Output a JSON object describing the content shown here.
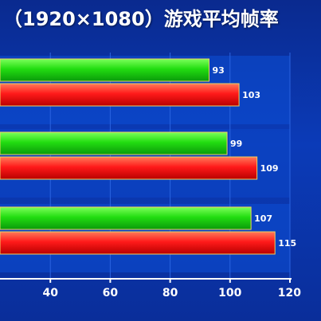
{
  "chart_data": {
    "type": "bar",
    "orientation": "horizontal",
    "title": "（1920×1080）游戏平均帧率",
    "xlabel": "",
    "ylabel": "",
    "xlim": [
      20,
      120
    ],
    "xticks": [
      40,
      60,
      80,
      100,
      120
    ],
    "grid": true,
    "categories": [
      "",
      "",
      ""
    ],
    "series": [
      {
        "color": "#22cc22",
        "values": [
          93,
          99,
          107
        ]
      },
      {
        "color": "#ff1a1a",
        "values": [
          103,
          109,
          115
        ]
      }
    ]
  }
}
